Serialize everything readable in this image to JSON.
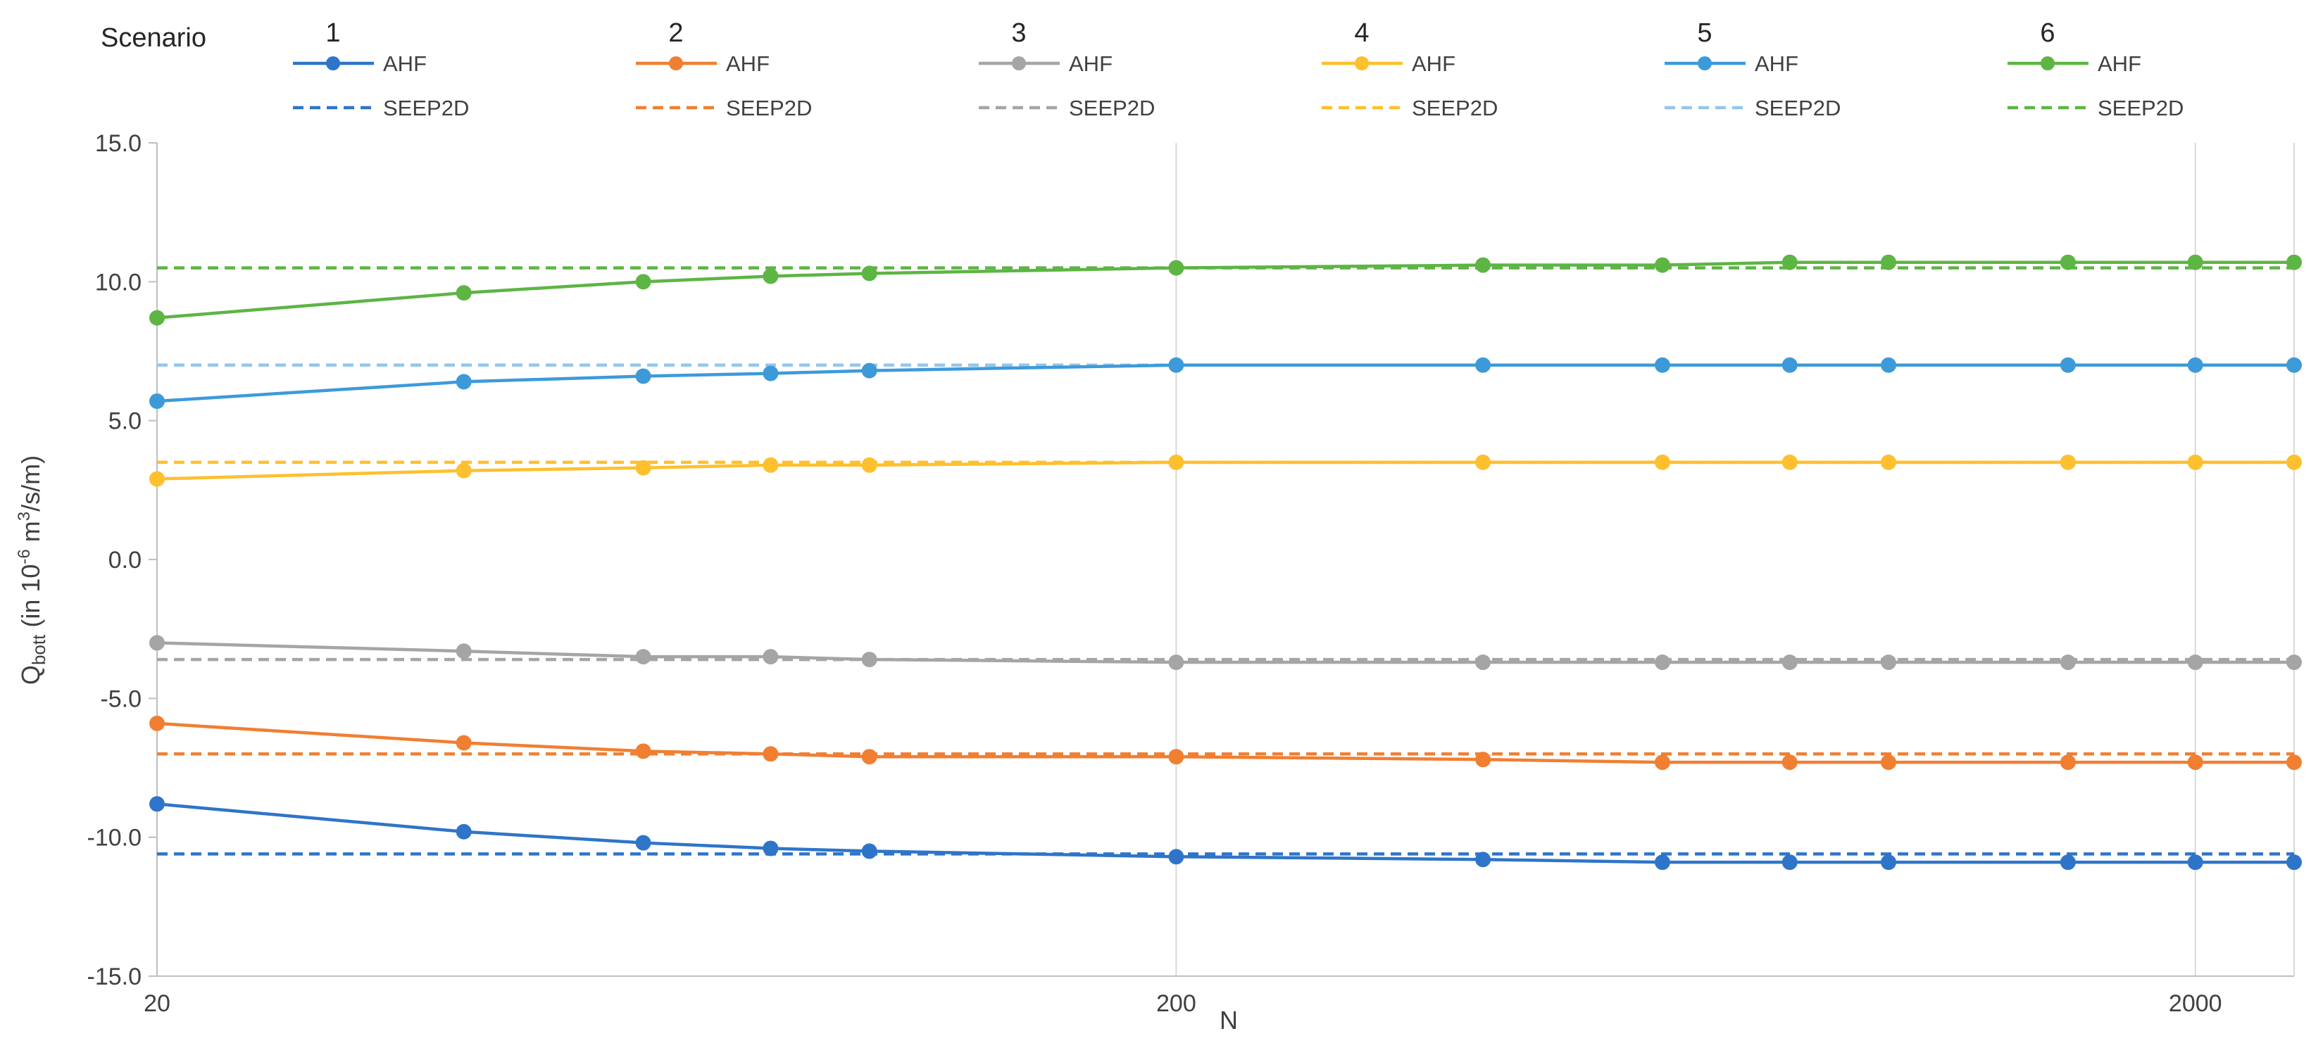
{
  "chart_data": {
    "type": "line",
    "xlabel": "N",
    "ylabel": {
      "base": "Q",
      "sub": "bott",
      "pre": " (in 10",
      "exp": "-6",
      "mid": " m",
      "exp2": "3",
      "post": "/s/m)"
    },
    "x_scale": "log",
    "xlim": [
      20,
      2500
    ],
    "ylim": [
      -15,
      15
    ],
    "x_ticks": [
      20,
      200,
      2000
    ],
    "x_tick_labels": [
      "20",
      "200",
      "2000"
    ],
    "y_ticks": [
      -15,
      -10,
      -5,
      0,
      5,
      10,
      15
    ],
    "y_tick_labels": [
      "-15.0",
      "-10.0",
      "-5.0",
      "0.0",
      "5.0",
      "10.0",
      "15.0"
    ],
    "grid": "vertical",
    "legend": {
      "placement": "top",
      "header": "Scenario",
      "scenario_labels": [
        "1",
        "2",
        "3",
        "4",
        "5",
        "6"
      ],
      "ahf_label": "AHF",
      "seep_label": "SEEP2D"
    },
    "x": [
      20,
      40,
      60,
      80,
      100,
      200,
      400,
      600,
      800,
      1000,
      1500,
      2000,
      2500
    ],
    "series": [
      {
        "scenario": "1",
        "kind": "AHF",
        "color": "#2e75c9",
        "values": [
          -8.8,
          -9.8,
          -10.2,
          -10.4,
          -10.5,
          -10.7,
          -10.8,
          -10.9,
          -10.9,
          -10.9,
          -10.9,
          -10.9,
          -10.9
        ]
      },
      {
        "scenario": "1",
        "kind": "SEEP2D",
        "color": "#2e75c9",
        "value": -10.6
      },
      {
        "scenario": "2",
        "kind": "AHF",
        "color": "#f07f32",
        "values": [
          -5.9,
          -6.6,
          -6.9,
          -7.0,
          -7.1,
          -7.1,
          -7.2,
          -7.3,
          -7.3,
          -7.3,
          -7.3,
          -7.3,
          -7.3
        ]
      },
      {
        "scenario": "2",
        "kind": "SEEP2D",
        "color": "#f07f32",
        "value": -7.0
      },
      {
        "scenario": "3",
        "kind": "AHF",
        "color": "#a5a5a5",
        "values": [
          -3.0,
          -3.3,
          -3.5,
          -3.5,
          -3.6,
          -3.7,
          -3.7,
          -3.7,
          -3.7,
          -3.7,
          -3.7,
          -3.7,
          -3.7
        ]
      },
      {
        "scenario": "3",
        "kind": "SEEP2D",
        "color": "#a5a5a5",
        "value": -3.6
      },
      {
        "scenario": "4",
        "kind": "AHF",
        "color": "#fec02e",
        "values": [
          2.9,
          3.2,
          3.3,
          3.4,
          3.4,
          3.5,
          3.5,
          3.5,
          3.5,
          3.5,
          3.5,
          3.5,
          3.5
        ]
      },
      {
        "scenario": "4",
        "kind": "SEEP2D",
        "color": "#fec02e",
        "value": 3.5
      },
      {
        "scenario": "5",
        "kind": "AHF",
        "color": "#3d9ad9",
        "values": [
          5.7,
          6.4,
          6.6,
          6.7,
          6.8,
          7.0,
          7.0,
          7.0,
          7.0,
          7.0,
          7.0,
          7.0,
          7.0
        ]
      },
      {
        "scenario": "5",
        "kind": "SEEP2D",
        "color": "#94c6ec",
        "value": 7.0
      },
      {
        "scenario": "6",
        "kind": "AHF",
        "color": "#5db544",
        "values": [
          8.7,
          9.6,
          10.0,
          10.2,
          10.3,
          10.5,
          10.6,
          10.6,
          10.7,
          10.7,
          10.7,
          10.7,
          10.7
        ]
      },
      {
        "scenario": "6",
        "kind": "SEEP2D",
        "color": "#5db544",
        "value": 10.5
      }
    ]
  }
}
